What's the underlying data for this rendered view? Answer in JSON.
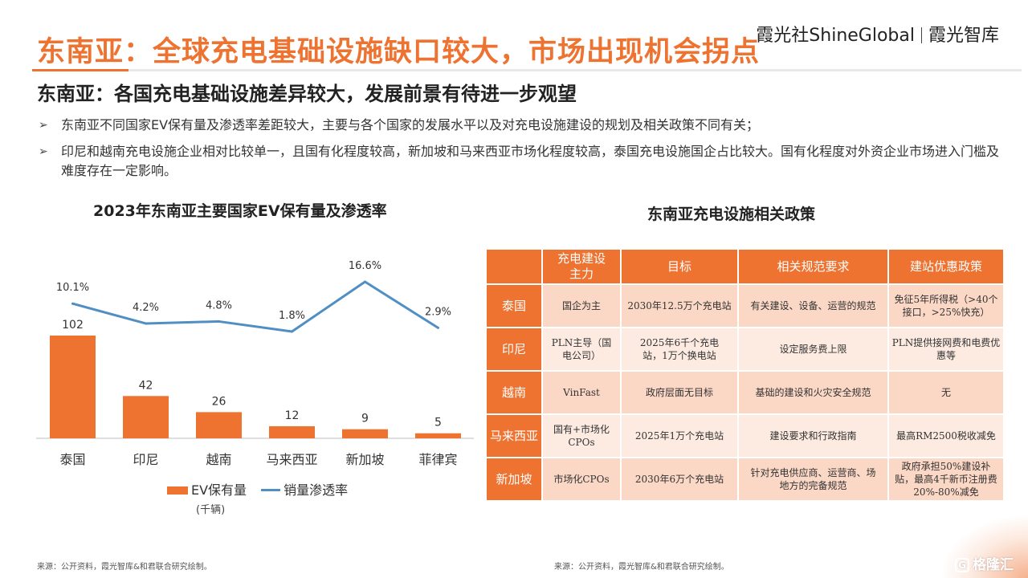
{
  "header": {
    "title": "东南亚：全球充电基础设施缺口较大，市场出现机会拐点",
    "brand_cn": "霞光社",
    "brand_en": "ShineGlobal",
    "brand_right": "霞光智库"
  },
  "subtitle": "东南亚：各国充电基础设施差异较大，发展前景有待进一步观望",
  "bullets": [
    "东南亚不同国家EV保有量及渗透率差距较大，主要与各个国家的发展水平以及对充电设施建设的规划及相关政策不同有关；",
    "印尼和越南充电设施企业相对比较单一，且国有化程度较高，新加坡和马来西亚市场化程度较高，泰国充电设施国企占比较大。国有化程度对外资企业市场进入门槛及难度存在一定影响。"
  ],
  "bullet_marker": "➢",
  "chart_title": "2023年东南亚主要国家EV保有量及渗透率",
  "chart_data": {
    "type": "bar",
    "title": "2023年东南亚主要国家EV保有量及渗透率",
    "categories": [
      "泰国",
      "印尼",
      "越南",
      "马来西亚",
      "新加坡",
      "菲律宾"
    ],
    "series": [
      {
        "name": "EV保有量",
        "kind": "bar",
        "values": [
          102,
          42,
          26,
          12,
          9,
          5
        ],
        "labels": [
          "102",
          "42",
          "26",
          "12",
          "9",
          "5"
        ],
        "color": "#ee7230"
      },
      {
        "name": "销量渗透率",
        "kind": "line",
        "values": [
          10.1,
          4.2,
          4.8,
          1.8,
          16.6,
          2.9
        ],
        "labels": [
          "10.1%",
          "4.2%",
          "4.8%",
          "1.8%",
          "16.6%",
          "2.9%"
        ],
        "color": "#4f8fc4"
      }
    ],
    "unit": "(千辆)",
    "legend_position": "bottom",
    "grid": false
  },
  "legend": {
    "bar": "EV保有量",
    "line": "销量渗透率",
    "unit": "(千辆)"
  },
  "table": {
    "title": "东南亚充电设施相关政策",
    "headers": [
      "",
      "充电建设主力",
      "目标",
      "相关规范要求",
      "建站优惠政策"
    ],
    "rows": [
      {
        "country": "泰国",
        "cells": [
          "国企为主",
          "2030年12.5万个充电站",
          "有关建设、设备、运营的规范",
          "免征5年所得税（>40个接口，>25%快充）"
        ]
      },
      {
        "country": "印尼",
        "cells": [
          "PLN主导（国电公司）",
          "2025年6千个充电站，1万个换电站",
          "设定服务费上限",
          "PLN提供接网费和电费优惠等"
        ]
      },
      {
        "country": "越南",
        "cells": [
          "VinFast",
          "政府层面无目标",
          "基础的建设和火灾安全规范",
          "无"
        ]
      },
      {
        "country": "马来西亚",
        "cells": [
          "国有+市场化CPOs",
          "2025年1万个充电站",
          "建设要求和行政指南",
          "最高RM2500税收减免"
        ]
      },
      {
        "country": "新加坡",
        "cells": [
          "市场化CPOs",
          "2030年6万个充电站",
          "针对充电供应商、运营商、场地方的完备规范",
          "政府承担50%建设补贴，最高4千新币注册费20%-80%减免"
        ]
      }
    ]
  },
  "sources": {
    "left": "来源：公开资料，霞光智库&和君联合研究绘制。",
    "right": "来源：公开资料，霞光智库&和君联合研究绘制。"
  },
  "watermark": {
    "icon": "G",
    "text": "格隆汇"
  },
  "colors": {
    "accent": "#ee7230",
    "line": "#4f8fc4",
    "row_dark": "#fbd7c5",
    "row_light": "#fdebe2"
  }
}
